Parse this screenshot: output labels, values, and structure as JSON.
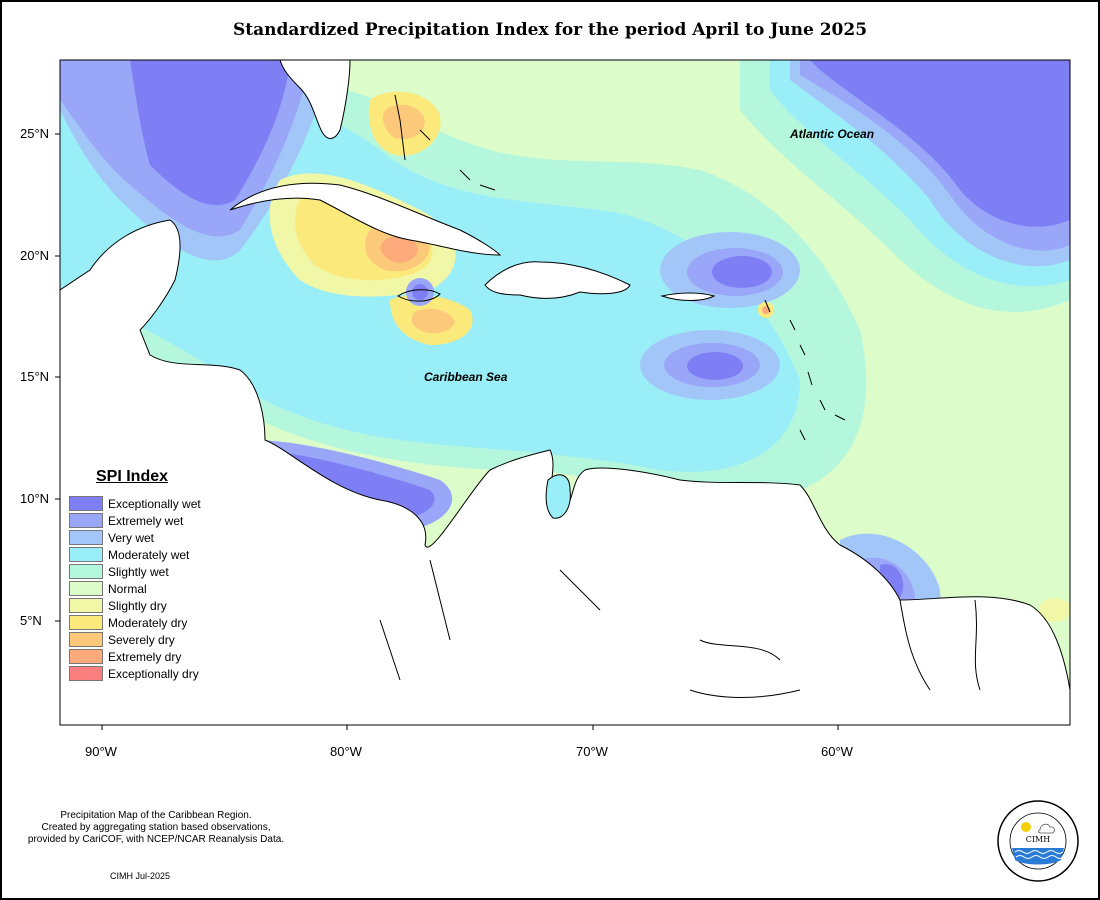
{
  "title": "Standardized Precipitation Index for the period April to June 2025",
  "map_labels": {
    "atlantic": "Atlantic Ocean",
    "caribbean": "Caribbean Sea"
  },
  "lat_ticks": [
    "25°N",
    "20°N",
    "15°N",
    "10°N",
    "5°N"
  ],
  "lon_ticks": [
    "90°W",
    "80°W",
    "70°W",
    "60°W"
  ],
  "legend": {
    "title": "SPI Index",
    "items": [
      {
        "label": "Exceptionally wet",
        "color": "#7f7ff5"
      },
      {
        "label": "Extremely wet",
        "color": "#9aa6f7"
      },
      {
        "label": "Very wet",
        "color": "#a3c6f8"
      },
      {
        "label": "Moderately wet",
        "color": "#9aeef7"
      },
      {
        "label": "Slightly wet",
        "color": "#b5f7dc"
      },
      {
        "label": "Normal",
        "color": "#dcfcc9"
      },
      {
        "label": "Slightly dry",
        "color": "#f0f8a7"
      },
      {
        "label": "Moderately dry",
        "color": "#fbe97c"
      },
      {
        "label": "Severely dry",
        "color": "#fcc97a"
      },
      {
        "label": "Extremely dry",
        "color": "#fca97b"
      },
      {
        "label": "Exceptionally dry",
        "color": "#fb7f7f"
      }
    ]
  },
  "credit_lines": [
    "Precipitation Map of the Caribbean Region.",
    "Created by aggregating station based observations,",
    "provided by CariCOF, with NCEP/NCAR Reanalysis Data."
  ],
  "date_label": "CIMH Jul-2025",
  "logo": {
    "text": "CIMH",
    "ring_text_top": "Caribbean Institute for",
    "ring_text_bottom": "Meteorology and Hydrology"
  }
}
